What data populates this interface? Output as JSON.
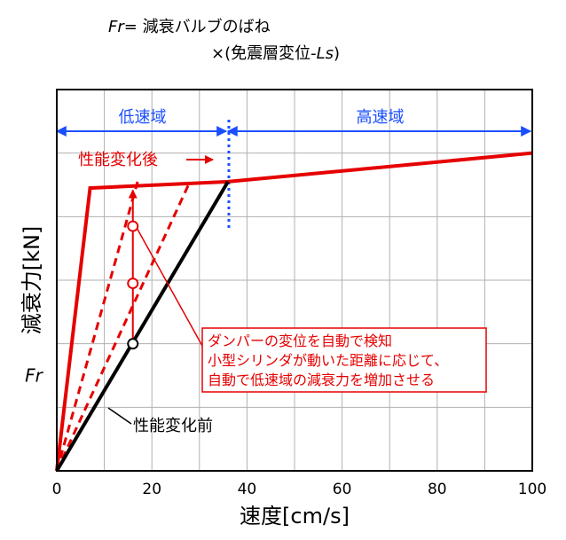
{
  "formula": {
    "line1_var": "Fr",
    "line1_eq": "= 減衰バルブのばね",
    "line2_prefix": "×(免震層変位-",
    "line2_var": "Ls",
    "line2_suffix": ")"
  },
  "chart_data": {
    "type": "line",
    "xlabel": "速度[cm/s]",
    "ylabel": "減衰力[kN]",
    "xlim": [
      0,
      100
    ],
    "ylim": [
      0,
      6
    ],
    "xticks": [
      0,
      20,
      40,
      60,
      80,
      100
    ],
    "y_special_tick": {
      "label": "Fr",
      "y": 1.5
    },
    "grid": true,
    "regions": [
      {
        "label": "低速域",
        "x_from": 0,
        "x_to": 36
      },
      {
        "label": "高速域",
        "x_from": 36,
        "x_to": 100
      }
    ],
    "boundary_x": 36,
    "series": [
      {
        "name": "性能変化後",
        "color": "#e60000",
        "style": "solid",
        "width": 4,
        "x": [
          0,
          7,
          36,
          100
        ],
        "y": [
          0,
          4.45,
          4.55,
          5.0
        ]
      },
      {
        "name": "",
        "color": "#e60000",
        "style": "dashed",
        "width": 3,
        "x": [
          0,
          17
        ],
        "y": [
          0,
          4.55
        ]
      },
      {
        "name": "",
        "color": "#e60000",
        "style": "dashed",
        "width": 3,
        "x": [
          0,
          28
        ],
        "y": [
          0,
          4.55
        ]
      },
      {
        "name": "性能変化前",
        "color": "#000000",
        "style": "solid",
        "width": 4,
        "x": [
          0,
          36
        ],
        "y": [
          0,
          4.55
        ]
      }
    ],
    "markers": [
      {
        "x": 16,
        "y": 2.0,
        "color": "#000000"
      },
      {
        "x": 16,
        "y": 2.95,
        "color": "#e60000"
      },
      {
        "x": 16,
        "y": 3.85,
        "color": "#e60000"
      }
    ],
    "arrow": {
      "x": 16,
      "y_from": 2.0,
      "y_to": 4.5,
      "color": "#e60000"
    },
    "annotations": {
      "after_label": "性能変化後",
      "before_label": "性能変化前",
      "note_lines": [
        "ダンパーの変位を自動で検知",
        "小型シリンダが動いた距離に応じて、",
        "自動で低速域の減衰力を増加させる"
      ]
    }
  }
}
